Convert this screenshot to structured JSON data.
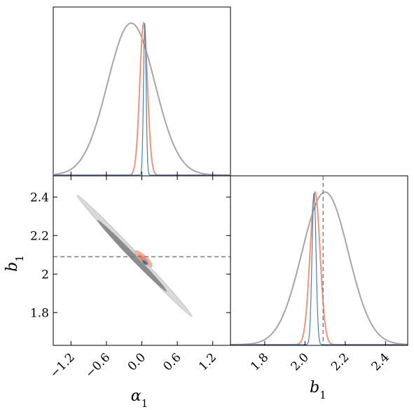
{
  "chart_data": [
    {
      "type": "line",
      "panel": "marginal-alpha1",
      "parameter": "α₁",
      "xlim": [
        -1.5,
        1.5
      ],
      "y_ticks_shown": false,
      "series": [
        {
          "color": "#a6a6a6",
          "mean": -0.18,
          "sd": 0.4
        },
        {
          "color": "#f0957a",
          "mean": 0.03,
          "sd": 0.065
        },
        {
          "color": "#4a7fb0",
          "mean": 0.05,
          "sd": 0.022
        }
      ]
    },
    {
      "type": "contour",
      "panel": "joint-alpha1-b1",
      "xlabel_main": "α",
      "xlabel_sub": "1",
      "ylabel_main": "b",
      "ylabel_sub": "1",
      "xlim": [
        -1.5,
        1.5
      ],
      "ylim": [
        1.63,
        2.51
      ],
      "xticks": [
        -1.2,
        -0.6,
        0.0,
        0.6,
        1.2
      ],
      "xticklabels": [
        "−1.2",
        "−0.6",
        "0.0",
        "0.6",
        "1.2"
      ],
      "yticks": [
        1.8,
        2.0,
        2.2,
        2.4
      ],
      "yticklabels": [
        "1.8",
        "2",
        "2.2",
        "2.4"
      ],
      "reference_b1": 2.09,
      "contours": [
        {
          "level": "outer",
          "color": "#d9d9d9",
          "cx": -0.18,
          "cy": 2.1,
          "x_end": [
            -1.1,
            0.85
          ],
          "y_end": [
            2.41,
            1.78
          ],
          "half_width": 0.032
        },
        {
          "level": "inner",
          "color": "#8c8c8c",
          "cx": -0.18,
          "cy": 2.08,
          "x_end": [
            -0.75,
            0.42
          ],
          "y_end": [
            2.28,
            1.91
          ],
          "half_width": 0.025
        },
        {
          "level": "outer",
          "color": "#f2b3a0",
          "cx": 0.03,
          "cy": 2.08,
          "x_end": [
            -0.12,
            0.17
          ],
          "y_end": [
            2.12,
            2.04
          ],
          "half_width": 0.03
        },
        {
          "level": "inner",
          "color": "#e8836a",
          "cx": 0.03,
          "cy": 2.08,
          "x_end": [
            -0.06,
            0.11
          ],
          "y_end": [
            2.1,
            2.05
          ],
          "half_width": 0.02
        },
        {
          "level": "inner",
          "color": "#3f6f9e",
          "cx": 0.05,
          "cy": 2.06,
          "x_end": [
            0.01,
            0.09
          ],
          "y_end": [
            2.07,
            2.05
          ],
          "half_width": 0.012
        }
      ]
    },
    {
      "type": "line",
      "panel": "marginal-b1",
      "xlabel_main": "b",
      "xlabel_sub": "1",
      "xlim": [
        1.63,
        2.51
      ],
      "xticks": [
        1.8,
        2.0,
        2.2,
        2.4
      ],
      "xticklabels": [
        "1.8",
        "2.0",
        "2.2",
        "2.4"
      ],
      "reference_b1": 2.09,
      "series": [
        {
          "color": "#a6a6a6",
          "mean": 2.1,
          "sd": 0.115
        },
        {
          "color": "#f0957a",
          "mean": 2.05,
          "sd": 0.025
        },
        {
          "color": "#4a7fb0",
          "mean": 2.045,
          "sd": 0.01
        }
      ]
    }
  ]
}
